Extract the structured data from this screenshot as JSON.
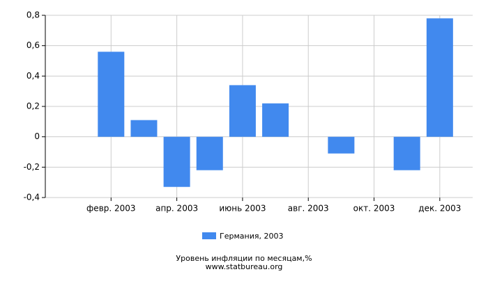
{
  "chart_data": {
    "type": "bar",
    "title": "Уровень инфляции по месяцам,%",
    "source": "www.statbureau.org",
    "categories": [
      null,
      "февр. 2003",
      null,
      "апр. 2003",
      null,
      "июнь 2003",
      null,
      "авг. 2003",
      null,
      "окт. 2003",
      null,
      "дек. 2003"
    ],
    "series": [
      {
        "name": "Германия, 2003",
        "color": "#4189ee",
        "values": [
          0,
          0.56,
          0.11,
          -0.33,
          -0.22,
          0.34,
          0.22,
          0,
          -0.11,
          0,
          -0.22,
          0.78
        ]
      }
    ],
    "ylim": [
      -0.4,
      0.8
    ],
    "yticks": [
      {
        "value": -0.4,
        "label": "-0,4"
      },
      {
        "value": -0.2,
        "label": "-0,2"
      },
      0,
      {
        "value": 0.2,
        "label": "0,2"
      },
      {
        "value": 0.4,
        "label": "0,4"
      },
      {
        "value": 0.6,
        "label": "0,6"
      },
      {
        "value": 0.8,
        "label": "0,8"
      }
    ],
    "grid": true
  }
}
